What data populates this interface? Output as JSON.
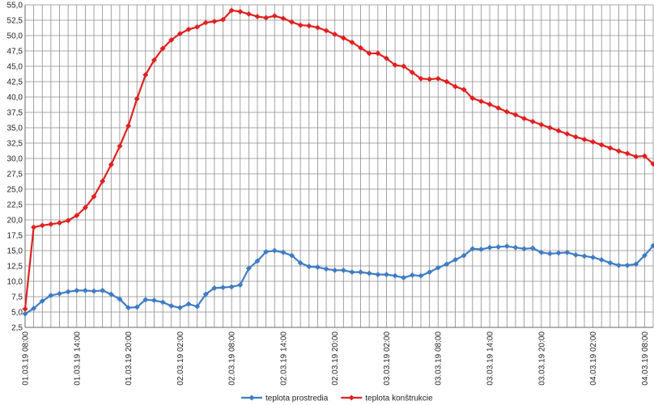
{
  "chart_data": {
    "type": "line",
    "categories": [
      "01.03.19 08:00",
      null,
      null,
      null,
      null,
      null,
      "01.03.19 14:00",
      null,
      null,
      null,
      null,
      null,
      "01.03.19 20:00",
      null,
      null,
      null,
      null,
      null,
      "02.03.19 02:00",
      null,
      null,
      null,
      null,
      null,
      "02.03.19 08:00",
      null,
      null,
      null,
      null,
      null,
      "02.03.19 14:00",
      null,
      null,
      null,
      null,
      null,
      "02.03.19 20:00",
      null,
      null,
      null,
      null,
      null,
      "03.03.19 02:00",
      null,
      null,
      null,
      null,
      null,
      "03.03.19 08:00",
      null,
      null,
      null,
      null,
      null,
      "03.03.19 14:00",
      null,
      null,
      null,
      null,
      null,
      "03.03.19 20:00",
      null,
      null,
      null,
      null,
      null,
      "04.03.19 02:00",
      null,
      null,
      null,
      null,
      null,
      "04.03.19 08:00",
      null
    ],
    "series": [
      {
        "name": "teplota prostredia",
        "color": "#3f7cc4",
        "values": [
          4.7,
          5.6,
          6.8,
          7.7,
          8.0,
          8.3,
          8.5,
          8.5,
          8.4,
          8.5,
          7.9,
          7.1,
          5.7,
          5.8,
          7.0,
          6.9,
          6.6,
          6.0,
          5.7,
          6.3,
          5.9,
          7.9,
          8.9,
          9.0,
          9.1,
          9.4,
          12.1,
          13.3,
          14.8,
          15.0,
          14.7,
          14.2,
          13.0,
          12.4,
          12.3,
          12.0,
          11.8,
          11.8,
          11.5,
          11.5,
          11.3,
          11.1,
          11.1,
          10.9,
          10.6,
          11.0,
          10.9,
          11.5,
          12.2,
          12.8,
          13.5,
          14.2,
          15.3,
          15.2,
          15.5,
          15.6,
          15.7,
          15.5,
          15.3,
          15.4,
          14.7,
          14.5,
          14.6,
          14.7,
          14.3,
          14.1,
          13.9,
          13.5,
          13.0,
          12.6,
          12.6,
          12.8,
          14.2,
          15.8
        ]
      },
      {
        "name": "teplota konštrukcie",
        "color": "#e02020",
        "values": [
          5.5,
          18.8,
          19.1,
          19.3,
          19.5,
          19.9,
          20.7,
          22.0,
          23.8,
          26.3,
          29.0,
          32.0,
          35.3,
          39.7,
          43.6,
          46.0,
          47.9,
          49.3,
          50.3,
          51.0,
          51.4,
          52.1,
          52.3,
          52.6,
          54.1,
          53.9,
          53.5,
          53.1,
          52.9,
          53.2,
          52.8,
          52.2,
          51.7,
          51.6,
          51.3,
          50.8,
          50.2,
          49.6,
          48.9,
          48.0,
          47.1,
          47.1,
          46.3,
          45.2,
          45.0,
          44.0,
          43.0,
          42.9,
          43.0,
          42.5,
          41.7,
          41.2,
          39.8,
          39.3,
          38.8,
          38.2,
          37.6,
          37.1,
          36.5,
          36.0,
          35.5,
          35.0,
          34.5,
          34.0,
          33.5,
          33.1,
          32.7,
          32.2,
          31.7,
          31.2,
          30.8,
          30.3,
          30.4,
          29.1
        ]
      }
    ],
    "ylim": [
      2.5,
      55
    ],
    "yticks": [
      {
        "value": 2.5,
        "label": "2,5"
      },
      {
        "value": 5,
        "label": "5,0"
      },
      {
        "value": 7.5,
        "label": "7,5"
      },
      {
        "value": 10,
        "label": "10,0"
      },
      {
        "value": 12.5,
        "label": "12,5"
      },
      {
        "value": 15,
        "label": "15,0"
      },
      {
        "value": 17.5,
        "label": "17,5"
      },
      {
        "value": 20,
        "label": "20,0"
      },
      {
        "value": 22.5,
        "label": "22,5"
      },
      {
        "value": 25,
        "label": "25,0"
      },
      {
        "value": 27.5,
        "label": "27,5"
      },
      {
        "value": 30,
        "label": "30,0"
      },
      {
        "value": 32.5,
        "label": "32,5"
      },
      {
        "value": 35,
        "label": "35,0"
      },
      {
        "value": 37.5,
        "label": "37,5"
      },
      {
        "value": 40,
        "label": "40,0"
      },
      {
        "value": 42.5,
        "label": "42,5"
      },
      {
        "value": 45,
        "label": "45,0"
      },
      {
        "value": 47.5,
        "label": "47,5"
      },
      {
        "value": 50,
        "label": "50,0"
      },
      {
        "value": 52.5,
        "label": "52,5"
      },
      {
        "value": 55,
        "label": "55,0"
      }
    ],
    "grid": true,
    "legend": "bottom"
  }
}
